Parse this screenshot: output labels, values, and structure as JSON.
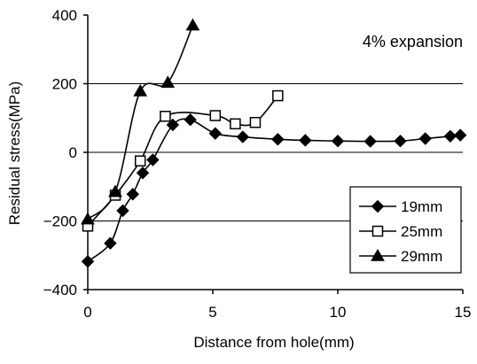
{
  "chart_data": {
    "type": "line",
    "title": "",
    "annotation": "4% expansion",
    "xlabel": "Distance from hole(mm)",
    "ylabel": "Residual stress(MPa)",
    "xlim": [
      0,
      15
    ],
    "ylim": [
      -400,
      400
    ],
    "x_ticks": [
      0,
      5,
      10,
      15
    ],
    "y_ticks": [
      -400,
      -200,
      0,
      200,
      400
    ],
    "x_tick_labels": [
      "0",
      "5",
      "10",
      "15"
    ],
    "y_tick_labels": [
      "−400",
      "−200",
      "0",
      "200",
      "400"
    ],
    "grid": "horizontal",
    "legend_position": "bottom-right",
    "line_color": "#000000",
    "series": [
      {
        "name": "19mm",
        "marker": "diamond",
        "x": [
          0,
          0.9,
          1.4,
          1.8,
          2.2,
          2.6,
          3.4,
          4.1,
          5.1,
          6.2,
          7.6,
          8.7,
          10.0,
          11.3,
          12.5,
          13.5,
          14.5,
          14.9
        ],
        "y": [
          -318,
          -265,
          -170,
          -122,
          -60,
          -22,
          80,
          95,
          55,
          45,
          38,
          35,
          33,
          32,
          33,
          40,
          47,
          50
        ]
      },
      {
        "name": "25mm",
        "marker": "square",
        "x": [
          0,
          1.1,
          2.1,
          3.1,
          5.1,
          5.9,
          6.7,
          7.6
        ],
        "y": [
          -215,
          -125,
          -25,
          105,
          107,
          83,
          87,
          165
        ]
      },
      {
        "name": "29mm",
        "marker": "triangle",
        "x": [
          0,
          1.1,
          2.1,
          3.2,
          4.2
        ],
        "y": [
          -195,
          -115,
          178,
          203,
          370
        ]
      }
    ]
  }
}
